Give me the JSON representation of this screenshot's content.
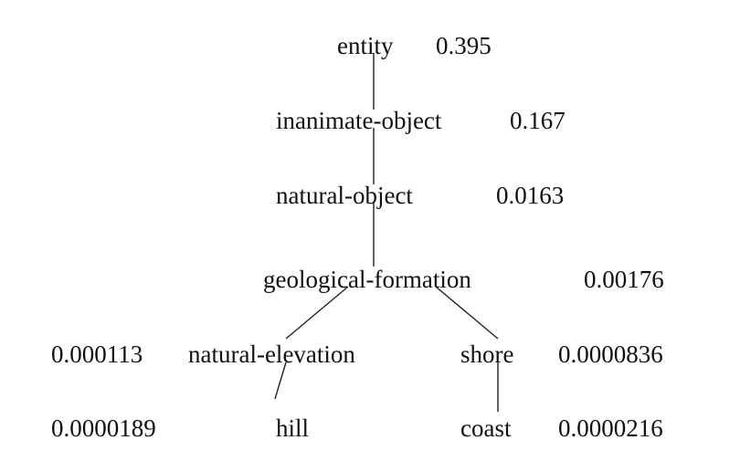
{
  "tree": {
    "nodes": [
      {
        "id": "entity",
        "label": "entity",
        "value": "0.395"
      },
      {
        "id": "inanimate-object",
        "label": "inanimate-object",
        "value": "0.167"
      },
      {
        "id": "natural-object",
        "label": "natural-object",
        "value": "0.0163"
      },
      {
        "id": "geological-formation",
        "label": "geological-formation",
        "value": "0.00176"
      },
      {
        "id": "natural-elevation",
        "label": "natural-elevation",
        "value": "0.000113"
      },
      {
        "id": "shore",
        "label": "shore",
        "value": "0.0000836"
      },
      {
        "id": "hill",
        "label": "hill",
        "value": "0.0000189"
      },
      {
        "id": "coast",
        "label": "coast",
        "value": "0.0000216"
      }
    ],
    "edges": [
      [
        "entity",
        "inanimate-object"
      ],
      [
        "inanimate-object",
        "natural-object"
      ],
      [
        "natural-object",
        "geological-formation"
      ],
      [
        "geological-formation",
        "natural-elevation"
      ],
      [
        "geological-formation",
        "shore"
      ],
      [
        "natural-elevation",
        "hill"
      ],
      [
        "shore",
        "coast"
      ]
    ]
  }
}
